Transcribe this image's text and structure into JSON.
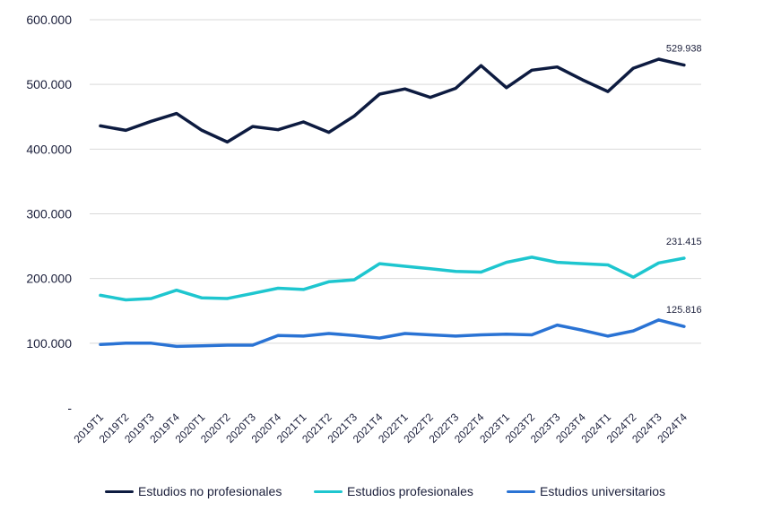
{
  "chart_data": {
    "type": "line",
    "title": "",
    "xlabel": "",
    "ylabel": "",
    "ylim": [
      0,
      600000
    ],
    "y_ticks": [
      {
        "value": 0,
        "label": "-"
      },
      {
        "value": 100000,
        "label": "100.000"
      },
      {
        "value": 200000,
        "label": "200.000"
      },
      {
        "value": 300000,
        "label": "300.000"
      },
      {
        "value": 400000,
        "label": "400.000"
      },
      {
        "value": 500000,
        "label": "500.000"
      },
      {
        "value": 600000,
        "label": "600.000"
      }
    ],
    "grid": "horizontal",
    "legend_position": "bottom",
    "categories": [
      "2019T1",
      "2019T2",
      "2019T3",
      "2019T4",
      "2020T1",
      "2020T2",
      "2020T3",
      "2020T4",
      "2021T1",
      "2021T2",
      "2021T3",
      "2021T4",
      "2022T1",
      "2022T2",
      "2022T3",
      "2022T4",
      "2023T1",
      "2023T2",
      "2023T3",
      "2023T4",
      "2024T1",
      "2024T2",
      "2024T3",
      "2024T4"
    ],
    "series": [
      {
        "name": "Estudios no profesionales",
        "color": "#0d1b40",
        "values": [
          436000,
          429000,
          443000,
          455000,
          429000,
          411000,
          435000,
          430000,
          442000,
          426000,
          451000,
          485000,
          493000,
          480000,
          494000,
          529000,
          495000,
          522000,
          527000,
          507000,
          489000,
          525000,
          539000,
          529938
        ],
        "end_label": "529.938"
      },
      {
        "name": "Estudios profesionales",
        "color": "#1ec6cf",
        "values": [
          174000,
          167000,
          169000,
          182000,
          170000,
          169000,
          177000,
          185000,
          183000,
          195000,
          198000,
          223000,
          219000,
          215000,
          211000,
          210000,
          225000,
          233000,
          225000,
          223000,
          221000,
          202000,
          224000,
          231415
        ],
        "end_label": "231.415"
      },
      {
        "name": "Estudios universitarios",
        "color": "#2a73d4",
        "values": [
          98000,
          100000,
          100000,
          95000,
          96000,
          97000,
          97000,
          112000,
          111000,
          115000,
          112000,
          108000,
          115000,
          113000,
          111000,
          113000,
          114000,
          113000,
          128000,
          120000,
          111000,
          119000,
          136000,
          125816
        ],
        "end_label": "125.816"
      }
    ]
  }
}
